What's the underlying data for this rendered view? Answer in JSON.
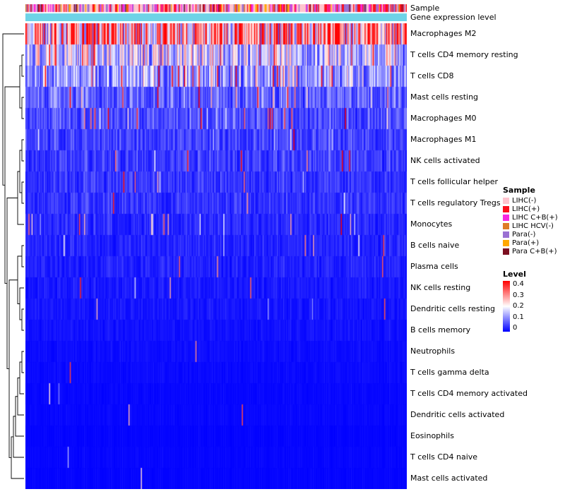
{
  "labels": {
    "sample_bar": "Sample",
    "expression_bar": "Gene expression level"
  },
  "chart_data": {
    "type": "heatmap",
    "title": "",
    "n_samples": 370,
    "value_range": [
      0,
      0.4
    ],
    "color_scale": {
      "low": "#0000FF",
      "mid": "#FFFFFF",
      "high": "#FF0000",
      "mid_at": 0.2
    },
    "expression_bar_color": "#6ED3E7",
    "rows": [
      {
        "name": "Macrophages M2",
        "mean_level": 0.27,
        "spike_freq": 0.05
      },
      {
        "name": "T cells CD4 memory resting",
        "mean_level": 0.155,
        "spike_freq": 0.03
      },
      {
        "name": "T cells CD8",
        "mean_level": 0.115,
        "spike_freq": 0.06
      },
      {
        "name": "Mast cells resting",
        "mean_level": 0.075,
        "spike_freq": 0.04
      },
      {
        "name": "Macrophages M0",
        "mean_level": 0.06,
        "spike_freq": 0.07
      },
      {
        "name": "Macrophages M1",
        "mean_level": 0.05,
        "spike_freq": 0.02
      },
      {
        "name": "NK cells activated",
        "mean_level": 0.045,
        "spike_freq": 0.02
      },
      {
        "name": "T cells follicular helper",
        "mean_level": 0.04,
        "spike_freq": 0.015
      },
      {
        "name": "T cells regulatory Tregs",
        "mean_level": 0.038,
        "spike_freq": 0.015
      },
      {
        "name": "Monocytes",
        "mean_level": 0.03,
        "spike_freq": 0.04
      },
      {
        "name": "B cells naive",
        "mean_level": 0.028,
        "spike_freq": 0.015
      },
      {
        "name": "Plasma cells",
        "mean_level": 0.024,
        "spike_freq": 0.03
      },
      {
        "name": "NK cells resting",
        "mean_level": 0.018,
        "spike_freq": 0.012
      },
      {
        "name": "Dendritic cells resting",
        "mean_level": 0.016,
        "spike_freq": 0.01
      },
      {
        "name": "B cells memory",
        "mean_level": 0.013,
        "spike_freq": 0.012
      },
      {
        "name": "Neutrophils",
        "mean_level": 0.009,
        "spike_freq": 0.006
      },
      {
        "name": "T cells gamma delta",
        "mean_level": 0.007,
        "spike_freq": 0.005
      },
      {
        "name": "T cells CD4 memory activated",
        "mean_level": 0.005,
        "spike_freq": 0.004
      },
      {
        "name": "Dendritic cells activated",
        "mean_level": 0.005,
        "spike_freq": 0.003
      },
      {
        "name": "Eosinophils",
        "mean_level": 0.003,
        "spike_freq": 0.002
      },
      {
        "name": "T cells CD4 naive",
        "mean_level": 0.004,
        "spike_freq": 0.003
      },
      {
        "name": "Mast cells activated",
        "mean_level": 0.003,
        "spike_freq": 0.002
      }
    ],
    "sample_groups": [
      {
        "label": "LIHC(-)",
        "color": "#FFC4CE",
        "weight": 0.42
      },
      {
        "label": "LIHC(+)",
        "color": "#FC0F1C",
        "weight": 0.2
      },
      {
        "label": "LIHC C+B(+)",
        "color": "#F627E0",
        "weight": 0.12
      },
      {
        "label": "LIHC HCV(-)",
        "color": "#DE7C26",
        "weight": 0.02
      },
      {
        "label": "Para(-)",
        "color": "#9A70D2",
        "weight": 0.13
      },
      {
        "label": "Para(+)",
        "color": "#FFA800",
        "weight": 0.06
      },
      {
        "label": "Para C+B(+)",
        "color": "#7C0F20",
        "weight": 0.05
      }
    ],
    "legend": {
      "sample_title": "Sample",
      "level_title": "Level",
      "level_ticks": [
        "0.4",
        "0.3",
        "0.2",
        "0.1",
        "0"
      ]
    }
  }
}
